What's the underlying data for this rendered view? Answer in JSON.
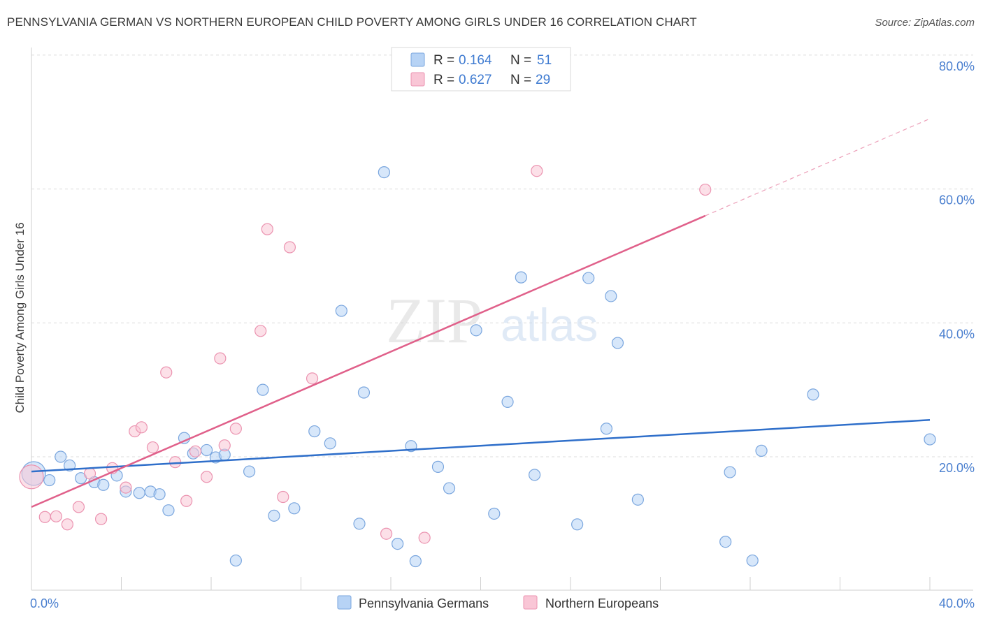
{
  "header": {
    "title": "PENNSYLVANIA GERMAN VS NORTHERN EUROPEAN CHILD POVERTY AMONG GIRLS UNDER 16 CORRELATION CHART",
    "source": "Source: ZipAtlas.com"
  },
  "watermark": {
    "part1": "ZIP",
    "part2": "atlas"
  },
  "colors": {
    "blue_fill": "#b7d3f5",
    "blue_stroke": "#7aa6de",
    "blue_line": "#2f6fca",
    "pink_fill": "#f9c6d6",
    "pink_stroke": "#eb93b0",
    "pink_line": "#e0608a",
    "tick_text": "#4a7fcf",
    "grid": "#dcdcdc"
  },
  "legend": {
    "r_label": "R =",
    "n_label": "N =",
    "entries": [
      {
        "r": "0.164",
        "n": "51"
      },
      {
        "r": "0.627",
        "n": "29"
      }
    ]
  },
  "chart_data": {
    "type": "scatter",
    "title": "PENNSYLVANIA GERMAN VS NORTHERN EUROPEAN CHILD POVERTY AMONG GIRLS UNDER 16 CORRELATION CHART",
    "xlabel": "",
    "ylabel": "Child Poverty Among Girls Under 16",
    "xlim": [
      0,
      40
    ],
    "ylim": [
      0,
      80
    ],
    "x_tick_labels": [
      "0.0%",
      "40.0%"
    ],
    "y_ticks": [
      20,
      40,
      60,
      80
    ],
    "y_tick_labels": [
      "20.0%",
      "40.0%",
      "60.0%",
      "80.0%"
    ],
    "grid": true,
    "legend_position": "top-center",
    "series": [
      {
        "name": "Pennsylvania Germans",
        "r": 0.164,
        "n": 51,
        "trend": {
          "x": [
            0,
            40
          ],
          "y": [
            17.8,
            25.5
          ],
          "dashed_from": null
        },
        "points": [
          [
            0.1,
            17.5
          ],
          [
            0.8,
            16.5
          ],
          [
            1.3,
            20.0
          ],
          [
            1.7,
            18.7
          ],
          [
            2.2,
            16.8
          ],
          [
            2.8,
            16.2
          ],
          [
            3.2,
            15.8
          ],
          [
            3.8,
            17.2
          ],
          [
            4.2,
            14.8
          ],
          [
            4.8,
            14.6
          ],
          [
            5.3,
            14.8
          ],
          [
            5.7,
            14.4
          ],
          [
            6.1,
            12.0
          ],
          [
            6.8,
            22.8
          ],
          [
            7.2,
            20.5
          ],
          [
            7.8,
            21.0
          ],
          [
            8.2,
            19.9
          ],
          [
            8.6,
            20.3
          ],
          [
            9.1,
            4.5
          ],
          [
            9.7,
            17.8
          ],
          [
            10.3,
            30.0
          ],
          [
            10.8,
            11.2
          ],
          [
            11.7,
            12.3
          ],
          [
            12.6,
            23.8
          ],
          [
            13.3,
            22.0
          ],
          [
            13.8,
            41.8
          ],
          [
            14.6,
            10.0
          ],
          [
            14.8,
            29.6
          ],
          [
            15.7,
            62.5
          ],
          [
            16.3,
            7.0
          ],
          [
            16.9,
            21.6
          ],
          [
            17.1,
            4.4
          ],
          [
            18.1,
            18.5
          ],
          [
            18.6,
            15.3
          ],
          [
            19.8,
            38.9
          ],
          [
            20.6,
            11.5
          ],
          [
            21.2,
            28.2
          ],
          [
            21.8,
            46.8
          ],
          [
            22.4,
            17.3
          ],
          [
            24.3,
            9.9
          ],
          [
            24.8,
            46.7
          ],
          [
            25.6,
            24.2
          ],
          [
            26.1,
            37.0
          ],
          [
            25.8,
            44.0
          ],
          [
            27.0,
            13.6
          ],
          [
            30.9,
            7.3
          ],
          [
            31.1,
            17.7
          ],
          [
            32.1,
            4.5
          ],
          [
            32.5,
            20.9
          ],
          [
            34.8,
            29.3
          ],
          [
            40.0,
            22.6
          ]
        ]
      },
      {
        "name": "Northern Europeans",
        "r": 0.627,
        "n": 29,
        "trend": {
          "x": [
            0,
            40
          ],
          "y": [
            12.5,
            70.5
          ],
          "dashed_from": 30.0
        },
        "points": [
          [
            0.0,
            17.0
          ],
          [
            0.6,
            11.0
          ],
          [
            1.1,
            11.1
          ],
          [
            1.6,
            9.9
          ],
          [
            2.1,
            12.5
          ],
          [
            2.6,
            17.5
          ],
          [
            3.1,
            10.7
          ],
          [
            3.6,
            18.3
          ],
          [
            4.2,
            15.4
          ],
          [
            4.6,
            23.8
          ],
          [
            4.9,
            24.4
          ],
          [
            5.4,
            21.4
          ],
          [
            6.0,
            32.6
          ],
          [
            6.4,
            19.2
          ],
          [
            6.9,
            13.4
          ],
          [
            7.3,
            20.8
          ],
          [
            7.8,
            17.0
          ],
          [
            8.4,
            34.7
          ],
          [
            8.6,
            21.7
          ],
          [
            9.1,
            24.2
          ],
          [
            10.2,
            38.8
          ],
          [
            10.5,
            54.0
          ],
          [
            11.2,
            14.0
          ],
          [
            11.5,
            51.3
          ],
          [
            12.5,
            31.7
          ],
          [
            15.8,
            8.5
          ],
          [
            17.5,
            7.9
          ],
          [
            22.5,
            62.7
          ],
          [
            30.0,
            59.9
          ]
        ]
      }
    ]
  }
}
